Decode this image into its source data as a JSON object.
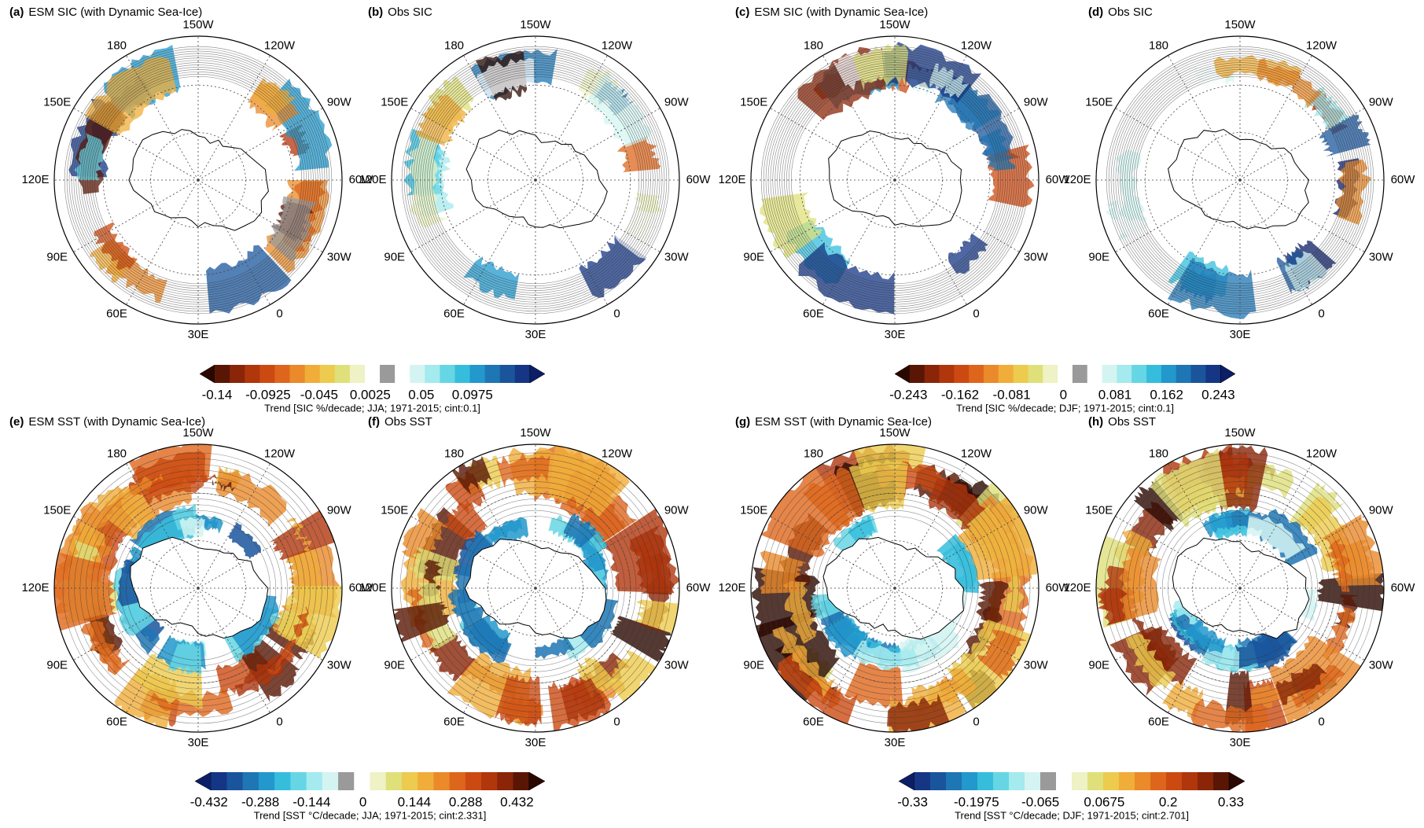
{
  "panels": [
    {
      "label": "(a)",
      "title": "ESM SIC (with Dynamic Sea-Ice)"
    },
    {
      "label": "(b)",
      "title": "Obs SIC"
    },
    {
      "label": "(c)",
      "title": "ESM SIC (with Dynamic Sea-Ice)"
    },
    {
      "label": "(d)",
      "title": "Obs SIC"
    },
    {
      "label": "(e)",
      "title": "ESM SST (with Dynamic Sea-Ice)"
    },
    {
      "label": "(f)",
      "title": "Obs SST"
    },
    {
      "label": "(g)",
      "title": "ESM SST (with Dynamic Sea-Ice)"
    },
    {
      "label": "(h)",
      "title": "Obs SST"
    }
  ],
  "longitudes": [
    "150W",
    "120W",
    "90W",
    "60W",
    "30W",
    "0",
    "30E",
    "60E",
    "90E",
    "120E",
    "150E",
    "180"
  ],
  "colorbars": [
    {
      "ticks": [
        -0.14,
        -0.0925,
        -0.045,
        0.0025,
        0.05,
        0.0975
      ],
      "caption": "Trend [SIC %/decade; JJA; 1971-2015; cint:0.1]",
      "colors": [
        "#2a0800",
        "#5a1604",
        "#8a2508",
        "#b0360c",
        "#cc4a12",
        "#de661c",
        "#ea8a2a",
        "#f0ad3a",
        "#eccb4e",
        "#dfe07a",
        "#eef2c4",
        "#ffffff",
        "#9a9a9a",
        "#ffffff",
        "#d4f4f2",
        "#a4eaee",
        "#66d6e4",
        "#36bddc",
        "#2298cc",
        "#1e76b4",
        "#1a559c",
        "#143684",
        "#0c1e66"
      ]
    },
    {
      "ticks": [
        -0.243,
        -0.162,
        -0.081,
        0,
        0.081,
        0.162,
        0.243
      ],
      "caption": "Trend [SIC %/decade; DJF; 1971-2015; cint:0.1]",
      "colors": [
        "#2a0800",
        "#5a1604",
        "#8a2508",
        "#b0360c",
        "#cc4a12",
        "#de661c",
        "#ea8a2a",
        "#f0ad3a",
        "#eccb4e",
        "#dfe07a",
        "#eef2c4",
        "#ffffff",
        "#9a9a9a",
        "#ffffff",
        "#d4f4f2",
        "#a4eaee",
        "#66d6e4",
        "#36bddc",
        "#2298cc",
        "#1e76b4",
        "#1a559c",
        "#143684",
        "#0c1e66"
      ]
    },
    {
      "ticks": [
        -0.432,
        -0.288,
        -0.144,
        0,
        0.144,
        0.288,
        0.432
      ],
      "caption": "Trend [SST °C/decade; JJA; 1971-2015; cint:2.331]",
      "colors": [
        "#0c1e66",
        "#143684",
        "#1a559c",
        "#1e76b4",
        "#2298cc",
        "#36bddc",
        "#66d6e4",
        "#a4eaee",
        "#d4f4f2",
        "#9a9a9a",
        "#ffffff",
        "#eef2c4",
        "#dfe07a",
        "#eccb4e",
        "#f0ad3a",
        "#ea8a2a",
        "#de661c",
        "#cc4a12",
        "#b0360c",
        "#8a2508",
        "#5a1604",
        "#2a0800"
      ]
    },
    {
      "ticks": [
        -0.33,
        -0.1975,
        -0.065,
        0.0675,
        0.2,
        0.33
      ],
      "caption": "Trend [SST °C/decade; DJF; 1971-2015; cint:2.701]",
      "colors": [
        "#0c1e66",
        "#143684",
        "#1a559c",
        "#1e76b4",
        "#2298cc",
        "#36bddc",
        "#66d6e4",
        "#a4eaee",
        "#d4f4f2",
        "#9a9a9a",
        "#ffffff",
        "#eef2c4",
        "#dfe07a",
        "#eccb4e",
        "#f0ad3a",
        "#ea8a2a",
        "#de661c",
        "#cc4a12",
        "#b0360c",
        "#8a2508",
        "#5a1604",
        "#2a0800"
      ]
    }
  ]
}
